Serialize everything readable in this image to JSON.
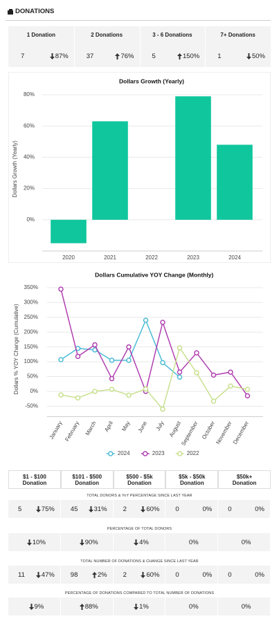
{
  "header": {
    "title": "DONATIONS"
  },
  "summary": {
    "columns": [
      {
        "label": "1 Donation",
        "count": 7,
        "change": "87%",
        "dir": "down"
      },
      {
        "label": "2 Donations",
        "count": 37,
        "change": "76%",
        "dir": "up"
      },
      {
        "label": "3 - 6 Donations",
        "count": 5,
        "change": "150%",
        "dir": "up"
      },
      {
        "label": "7+ Donations",
        "count": 1,
        "change": "50%",
        "dir": "down"
      }
    ]
  },
  "chart_data": [
    {
      "type": "bar",
      "title": "Dollars Growth (Yearly)",
      "y_label": "Dollars Growth (Yearly)",
      "categories": [
        "2020",
        "2021",
        "2022",
        "2023",
        "2024"
      ],
      "values": [
        -15,
        63,
        null,
        79,
        48
      ],
      "color": "#10c69d",
      "ylim": [
        -20,
        85
      ],
      "yticks": [
        {
          "value": 0,
          "label": "0%"
        },
        {
          "value": 20,
          "label": "20%"
        },
        {
          "value": 40,
          "label": "40%"
        },
        {
          "value": 60,
          "label": "60%"
        },
        {
          "value": 80,
          "label": "80%"
        }
      ],
      "grid": true
    },
    {
      "type": "line",
      "title": "Dollars Cumulative YOY Change (Monthly)",
      "y_label": "Dollars % YOY Change (Cumulative)",
      "categories": [
        "January",
        "February",
        "March",
        "April",
        "May",
        "June",
        "July",
        "August",
        "September",
        "October",
        "November",
        "December"
      ],
      "series": [
        {
          "name": "2024",
          "color": "#4bbcd6",
          "values": [
            107,
            145,
            140,
            105,
            105,
            240,
            97,
            48,
            null,
            null,
            null,
            null
          ]
        },
        {
          "name": "2023",
          "color": "#b03fb0",
          "values": [
            345,
            118,
            157,
            43,
            150,
            0,
            233,
            65,
            130,
            55,
            65,
            -15
          ]
        },
        {
          "name": "2022",
          "color": "#c8e08e",
          "values": [
            -12,
            -22,
            0,
            7,
            -13,
            8,
            -60,
            147,
            63,
            -33,
            18,
            7
          ]
        }
      ],
      "ylim": [
        -85,
        370
      ],
      "yticks": [
        {
          "value": -50,
          "label": "-50%"
        },
        {
          "value": 0,
          "label": "0%"
        },
        {
          "value": 50,
          "label": "50%"
        },
        {
          "value": 100,
          "label": "100%"
        },
        {
          "value": 150,
          "label": "150%"
        },
        {
          "value": 200,
          "label": "200%"
        },
        {
          "value": 250,
          "label": "250%"
        },
        {
          "value": 300,
          "label": "300%"
        },
        {
          "value": 350,
          "label": "350%"
        }
      ],
      "grid": true,
      "legend": "bottom"
    }
  ],
  "breakdown": {
    "columns": [
      [
        "$1 - $100",
        "Donation"
      ],
      [
        "$101 - $500",
        "Donation"
      ],
      [
        "$500 - $5k",
        "Donation"
      ],
      [
        "$5k - $50k",
        "Donation"
      ],
      [
        "$50k+",
        "Donation"
      ]
    ],
    "sections": [
      {
        "title": "TOTAL DONORS & YoY PERCENTAGE SINCE LAST YEAR",
        "cells": [
          {
            "count": 5,
            "change": "75%",
            "dir": "down"
          },
          {
            "count": 45,
            "change": "31%",
            "dir": "down"
          },
          {
            "count": 2,
            "change": "60%",
            "dir": "down"
          },
          {
            "count": 0,
            "change": "0%",
            "dir": "none"
          },
          {
            "count": 0,
            "change": "0%",
            "dir": "none"
          }
        ]
      },
      {
        "title": "PERCENTAGE OF TOTAL DONORS",
        "cells": [
          {
            "change": "10%",
            "dir": "down"
          },
          {
            "change": "90%",
            "dir": "down"
          },
          {
            "change": "4%",
            "dir": "down"
          },
          {
            "change": "0%",
            "dir": "none"
          },
          {
            "change": "0%",
            "dir": "none"
          }
        ]
      },
      {
        "title": "TOTAL NUMBER OF DONATIONS & CHANGE SINCE LAST YEAR",
        "cells": [
          {
            "count": 11,
            "change": "47%",
            "dir": "down"
          },
          {
            "count": 98,
            "change": "2%",
            "dir": "up"
          },
          {
            "count": 2,
            "change": "60%",
            "dir": "down"
          },
          {
            "count": 0,
            "change": "0%",
            "dir": "none"
          },
          {
            "count": 0,
            "change": "0%",
            "dir": "none"
          }
        ]
      },
      {
        "title": "PERCENTAGE OF DONATIONS COMPARED TO TOTAL NUMBER OF DONATIONS",
        "cells": [
          {
            "change": "9%",
            "dir": "down"
          },
          {
            "change": "88%",
            "dir": "up"
          },
          {
            "change": "1%",
            "dir": "down"
          },
          {
            "change": "0%",
            "dir": "none"
          },
          {
            "change": "0%",
            "dir": "none"
          }
        ]
      }
    ]
  }
}
